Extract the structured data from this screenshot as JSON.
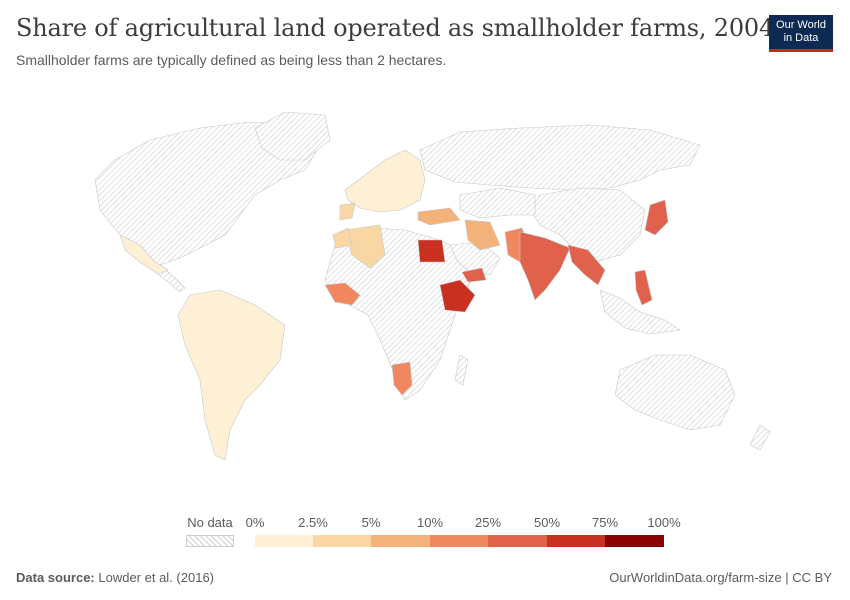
{
  "header": {
    "title": "Share of agricultural land operated as smallholder farms, 2004",
    "subtitle": "Smallholder farms are typically defined as being less than 2 hectares."
  },
  "logo": {
    "line1": "Our World",
    "line2": "in Data"
  },
  "legend": {
    "no_data_label": "No data",
    "bin_labels": [
      "0%",
      "2.5%",
      "5%",
      "10%",
      "25%",
      "50%",
      "75%",
      "100%"
    ],
    "bin_colors": [
      "#fdf0d5",
      "#f9d7a4",
      "#f4b27b",
      "#f1875e",
      "#e0614c",
      "#c9301f",
      "#8b0000"
    ]
  },
  "footer": {
    "source_label": "Data source:",
    "source_value": "Lowder et al. (2016)",
    "url": "OurWorldinData.org/farm-size | CC BY"
  },
  "map_data": {
    "unit": "share of agricultural land",
    "colored_regions": [
      {
        "region": "Egypt",
        "bin": "50-75%"
      },
      {
        "region": "Ethiopia",
        "bin": "50-75%"
      },
      {
        "region": "Bangladesh",
        "bin": "50-75%"
      },
      {
        "region": "India",
        "bin": "25-50%"
      },
      {
        "region": "Myanmar",
        "bin": "25-50%"
      },
      {
        "region": "Japan",
        "bin": "25-50%"
      },
      {
        "region": "Philippines",
        "bin": "25-50%"
      },
      {
        "region": "Pakistan",
        "bin": "10-25%"
      },
      {
        "region": "Namibia",
        "bin": "10-25%"
      },
      {
        "region": "Yemen",
        "bin": "10-25%"
      },
      {
        "region": "Turkey",
        "bin": "5-10%"
      },
      {
        "region": "Iran",
        "bin": "5-10%"
      },
      {
        "region": "Algeria",
        "bin": "2.5-5%"
      },
      {
        "region": "Brazil",
        "bin": "0-2.5%"
      },
      {
        "region": "Argentina",
        "bin": "0-2.5%"
      }
    ]
  }
}
